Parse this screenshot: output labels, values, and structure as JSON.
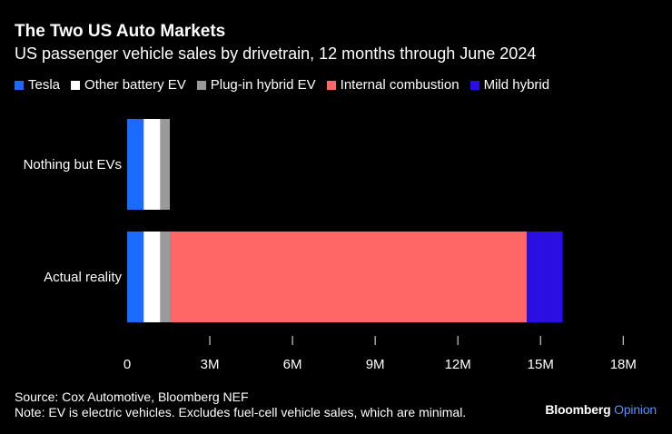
{
  "header": {
    "title": "The Two US Auto Markets",
    "subtitle": "US passenger vehicle sales by drivetrain, 12 months through June 2024"
  },
  "legend": [
    {
      "label": "Tesla",
      "color": "#1b6bff"
    },
    {
      "label": "Other battery EV",
      "color": "#ffffff"
    },
    {
      "label": "Plug-in hybrid EV",
      "color": "#9a9a9a"
    },
    {
      "label": "Internal combustion",
      "color": "#ff6666"
    },
    {
      "label": "Mild hybrid",
      "color": "#2a0fe0"
    }
  ],
  "chart_data": {
    "type": "bar",
    "orientation": "horizontal",
    "stacked": true,
    "title": "The Two US Auto Markets",
    "subtitle": "US passenger vehicle sales by drivetrain, 12 months through June 2024",
    "categories": [
      "Nothing but EVs",
      "Actual reality"
    ],
    "series": [
      {
        "name": "Tesla",
        "color": "#1b6bff",
        "values": [
          0.6,
          0.6
        ]
      },
      {
        "name": "Other battery EV",
        "color": "#ffffff",
        "values": [
          0.6,
          0.6
        ]
      },
      {
        "name": "Plug-in hybrid EV",
        "color": "#9a9a9a",
        "values": [
          0.35,
          0.35
        ]
      },
      {
        "name": "Internal combustion",
        "color": "#ff6666",
        "values": [
          0,
          12.95
        ]
      },
      {
        "name": "Mild hybrid",
        "color": "#2a0fe0",
        "values": [
          0,
          1.3
        ]
      }
    ],
    "xlim": [
      0,
      18
    ],
    "xticks": [
      0,
      3,
      6,
      9,
      12,
      15,
      18
    ],
    "xtick_labels": [
      "0",
      "3M",
      "6M",
      "9M",
      "12M",
      "15M",
      "18M"
    ],
    "xlabel": "",
    "ylabel": "",
    "unit": "millions of vehicles",
    "grid": false,
    "legend_position": "top-left"
  },
  "footer": {
    "source": "Source: Cox Automotive, Bloomberg NEF",
    "note": "Note: EV is electric vehicles. Excludes fuel-cell vehicle sales, which are minimal."
  },
  "brand": {
    "name": "Bloomberg",
    "suffix": "Opinion"
  }
}
